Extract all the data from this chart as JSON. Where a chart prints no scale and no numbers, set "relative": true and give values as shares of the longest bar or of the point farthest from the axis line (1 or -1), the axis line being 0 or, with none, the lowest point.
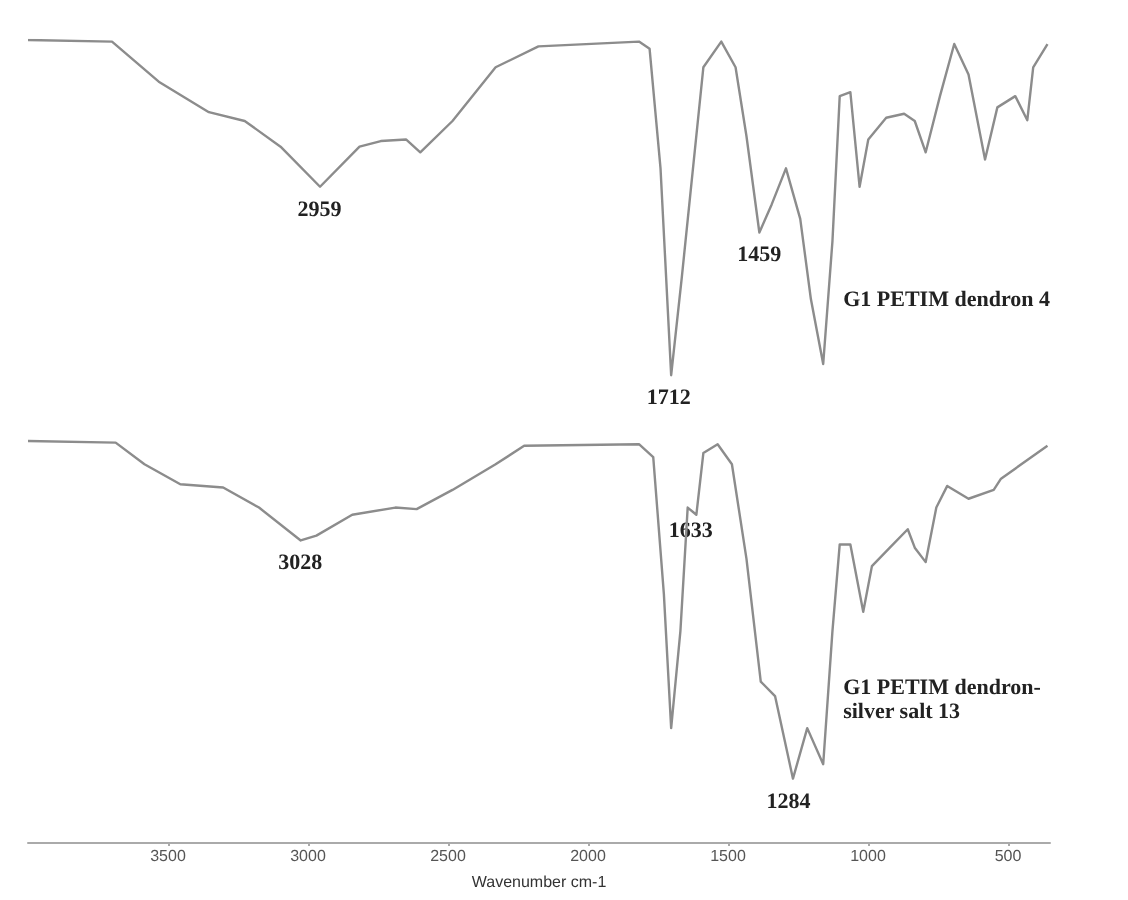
{
  "chart_data": {
    "type": "line",
    "relative": true,
    "xlabel": "Wavenumber cm-1",
    "xlim": [
      4000,
      350
    ],
    "xticks": [
      3500,
      3000,
      2500,
      2000,
      1500,
      1000,
      500
    ],
    "grid": false,
    "legend": false,
    "marker": "none",
    "line_style": "solid",
    "annotations": [
      {
        "text": "2959",
        "x": 2959,
        "y": 0.817
      },
      {
        "text": "1712",
        "x": 1712,
        "y": 0.582
      },
      {
        "text": "1459",
        "x": 1388,
        "y": 0.76
      },
      {
        "text": "3028",
        "x": 3028,
        "y": 0.376
      },
      {
        "text": "1633",
        "x": 1633,
        "y": 0.417
      },
      {
        "text": "1284",
        "x": 1284,
        "y": 0.079
      }
    ],
    "series": [
      {
        "name": "G1 PETIM dendron 4",
        "color": "#8c8c8c",
        "x": [
          4000,
          3700,
          3533,
          3354,
          3226,
          3098,
          2957,
          2816,
          2740,
          2650,
          2599,
          2484,
          2330,
          2177,
          1818,
          1780,
          1741,
          1703,
          1665,
          1588,
          1524,
          1473,
          1434,
          1388,
          1344,
          1293,
          1242,
          1204,
          1160,
          1127,
          1101,
          1063,
          1030,
          999,
          935,
          871,
          833,
          794,
          743,
          692,
          641,
          582,
          538,
          474,
          431,
          410,
          359
        ],
        "values": [
          1.0,
          0.998,
          0.948,
          0.91,
          0.899,
          0.867,
          0.817,
          0.867,
          0.874,
          0.876,
          0.86,
          0.899,
          0.966,
          0.992,
          0.998,
          0.989,
          0.84,
          0.582,
          0.704,
          0.966,
          0.998,
          0.966,
          0.88,
          0.76,
          0.795,
          0.84,
          0.777,
          0.677,
          0.596,
          0.749,
          0.93,
          0.935,
          0.817,
          0.876,
          0.903,
          0.908,
          0.899,
          0.86,
          0.93,
          0.995,
          0.957,
          0.851,
          0.916,
          0.93,
          0.9,
          0.966,
          0.995
        ]
      },
      {
        "name": "G1 PETIM dendron-silver salt 13",
        "color": "#8c8c8c",
        "x": [
          4000,
          3687,
          3584,
          3456,
          3303,
          3175,
          3026,
          2970,
          2842,
          2688,
          2612,
          2484,
          2330,
          2228,
          1818,
          1767,
          1729,
          1703,
          1670,
          1644,
          1613,
          1588,
          1537,
          1486,
          1434,
          1383,
          1332,
          1268,
          1217,
          1160,
          1127,
          1101,
          1063,
          1017,
          986,
          922,
          858,
          833,
          794,
          756,
          717,
          641,
          551,
          525,
          359
        ],
        "values": [
          0.5,
          0.498,
          0.471,
          0.446,
          0.442,
          0.417,
          0.376,
          0.382,
          0.408,
          0.417,
          0.415,
          0.439,
          0.471,
          0.494,
          0.496,
          0.48,
          0.309,
          0.142,
          0.263,
          0.417,
          0.408,
          0.485,
          0.496,
          0.471,
          0.353,
          0.2,
          0.182,
          0.079,
          0.142,
          0.097,
          0.263,
          0.371,
          0.371,
          0.287,
          0.344,
          0.367,
          0.39,
          0.367,
          0.349,
          0.417,
          0.444,
          0.428,
          0.439,
          0.453,
          0.494
        ]
      }
    ]
  }
}
